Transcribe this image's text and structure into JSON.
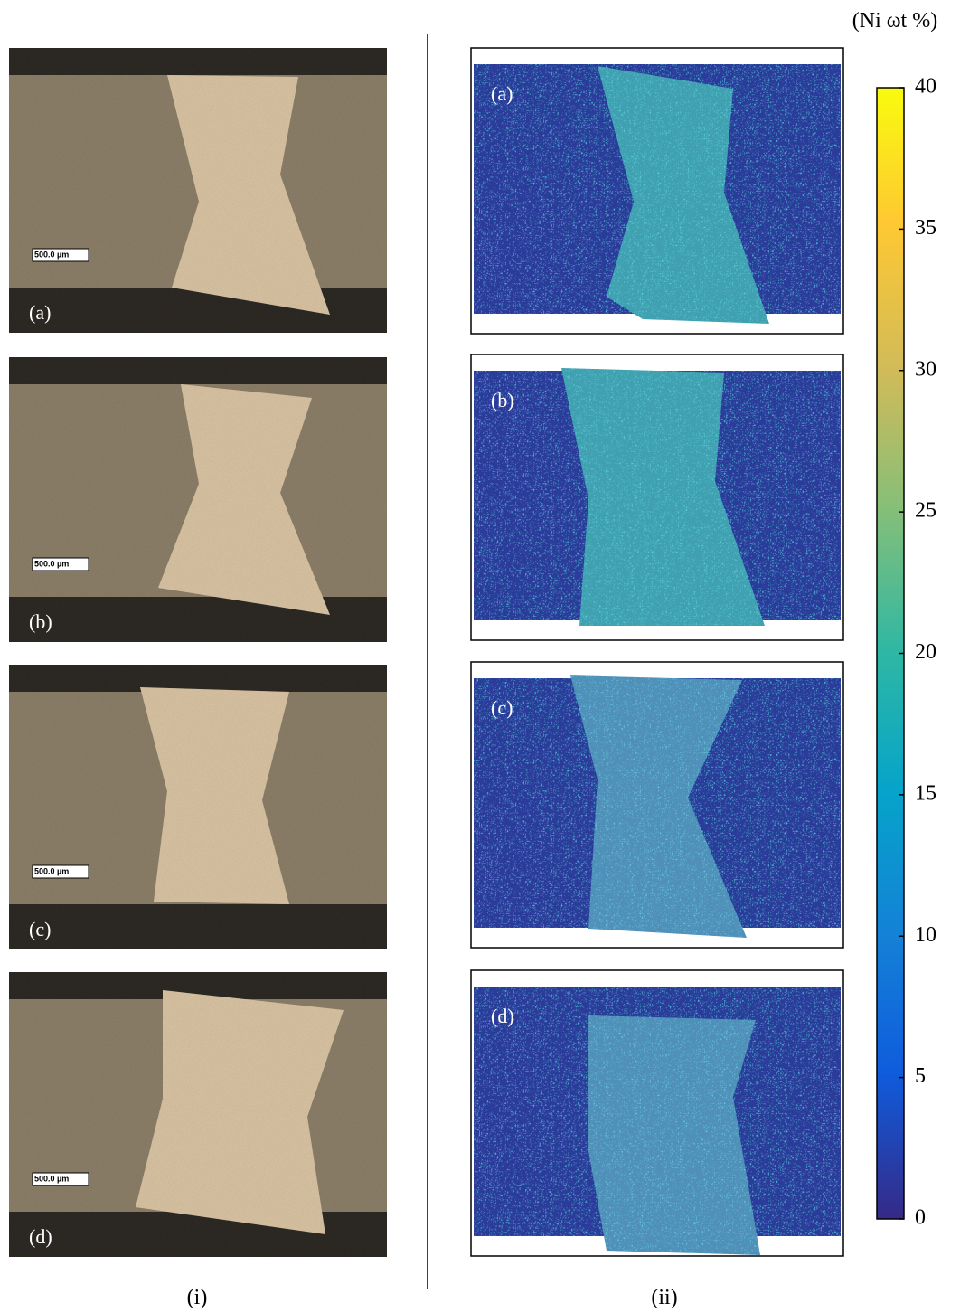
{
  "left_panels": [
    {
      "label": "(a)",
      "scale_bar": "500.0 µm"
    },
    {
      "label": "(b)",
      "scale_bar": "500.0 µm"
    },
    {
      "label": "(c)",
      "scale_bar": "500.0 µm"
    },
    {
      "label": "(d)",
      "scale_bar": "500.0 µm"
    }
  ],
  "right_panels": [
    {
      "label": "(a)"
    },
    {
      "label": "(b)"
    },
    {
      "label": "(c)"
    },
    {
      "label": "(d)"
    }
  ],
  "colorbar": {
    "title": "(Ni ωt %)",
    "range": [
      0,
      40
    ],
    "ticks": [
      0,
      5,
      10,
      15,
      20,
      25,
      30,
      35,
      40
    ]
  },
  "captions": [
    "(i)",
    "(ii)"
  ]
}
